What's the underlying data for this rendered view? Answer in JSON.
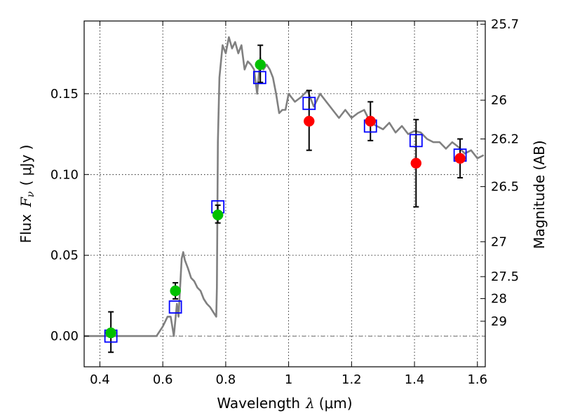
{
  "chart_data": {
    "type": "scatter",
    "title": "",
    "xlabel_prefix": "Wavelength",
    "xlabel_symbol": "λ",
    "xlabel_unit": "(μm)",
    "ylabel_prefix": "Flux",
    "ylabel_symbol": "F",
    "ylabel_subscript": "ν",
    "ylabel_unit": "( μJy )",
    "y2label": "Magnitude (AB)",
    "xlim": [
      0.35,
      1.625
    ],
    "ylim": [
      -0.019,
      0.195
    ],
    "grid": true,
    "grid_style": "dotted",
    "zero_line": true,
    "x_ticks": [
      0.4,
      0.6,
      0.8,
      1.0,
      1.2,
      1.4,
      1.6
    ],
    "x_tick_labels": [
      "0.4",
      "0.6",
      "0.8",
      "1",
      "1.2",
      "1.4",
      "1.6"
    ],
    "y_ticks": [
      0.0,
      0.05,
      0.1,
      0.15
    ],
    "y_tick_labels": [
      "0.00",
      "0.05",
      "0.10",
      "0.15"
    ],
    "y2_ticks": [
      {
        "label": "25.7",
        "flux": 0.193
      },
      {
        "label": "26",
        "flux": 0.146
      },
      {
        "label": "26.2",
        "flux": 0.122
      },
      {
        "label": "26.5",
        "flux": 0.0925
      },
      {
        "label": "27",
        "flux": 0.0584
      },
      {
        "label": "27.5",
        "flux": 0.0368
      },
      {
        "label": "28",
        "flux": 0.0232
      },
      {
        "label": "29",
        "flux": 0.0092
      }
    ],
    "colors": {
      "model": "#808080",
      "model_photometry": "#0000ff",
      "detection_optical": "#00c000",
      "detection_nir": "#ff0000",
      "errorbar": "#000000"
    },
    "model_sed": {
      "x": [
        0.35,
        0.58,
        0.6,
        0.615,
        0.625,
        0.635,
        0.645,
        0.65,
        0.655,
        0.66,
        0.665,
        0.67,
        0.68,
        0.69,
        0.7,
        0.71,
        0.72,
        0.73,
        0.74,
        0.75,
        0.76,
        0.77,
        0.772,
        0.775,
        0.78,
        0.79,
        0.8,
        0.81,
        0.82,
        0.83,
        0.84,
        0.85,
        0.86,
        0.87,
        0.88,
        0.89,
        0.9,
        0.91,
        0.92,
        0.93,
        0.94,
        0.95,
        0.96,
        0.97,
        0.98,
        0.99,
        1.0,
        1.02,
        1.04,
        1.06,
        1.08,
        1.1,
        1.12,
        1.14,
        1.16,
        1.18,
        1.2,
        1.22,
        1.24,
        1.26,
        1.28,
        1.3,
        1.32,
        1.34,
        1.36,
        1.38,
        1.4,
        1.42,
        1.44,
        1.46,
        1.48,
        1.5,
        1.52,
        1.54,
        1.56,
        1.58,
        1.6,
        1.62
      ],
      "y": [
        0.0,
        0.0,
        0.006,
        0.012,
        0.012,
        0.0,
        0.02,
        0.012,
        0.03,
        0.048,
        0.052,
        0.047,
        0.042,
        0.036,
        0.034,
        0.03,
        0.028,
        0.023,
        0.02,
        0.018,
        0.015,
        0.012,
        0.03,
        0.12,
        0.16,
        0.18,
        0.175,
        0.185,
        0.178,
        0.182,
        0.175,
        0.18,
        0.165,
        0.17,
        0.168,
        0.165,
        0.15,
        0.172,
        0.165,
        0.168,
        0.165,
        0.16,
        0.15,
        0.138,
        0.14,
        0.14,
        0.15,
        0.145,
        0.148,
        0.152,
        0.142,
        0.15,
        0.145,
        0.14,
        0.135,
        0.14,
        0.135,
        0.138,
        0.14,
        0.132,
        0.13,
        0.128,
        0.132,
        0.126,
        0.13,
        0.125,
        0.127,
        0.126,
        0.122,
        0.12,
        0.12,
        0.116,
        0.12,
        0.117,
        0.113,
        0.115,
        0.11,
        0.112
      ]
    },
    "model_photometry": {
      "x": [
        0.435,
        0.64,
        0.775,
        0.908,
        1.065,
        1.26,
        1.405,
        1.545
      ],
      "y": [
        0.0,
        0.018,
        0.08,
        0.16,
        0.144,
        0.13,
        0.121,
        0.112
      ]
    },
    "observed": [
      {
        "x": 0.435,
        "y": 0.002,
        "err_low": 0.012,
        "err_high": 0.013,
        "group": "optical"
      },
      {
        "x": 0.64,
        "y": 0.028,
        "err_low": 0.005,
        "err_high": 0.005,
        "group": "optical"
      },
      {
        "x": 0.775,
        "y": 0.075,
        "err_low": 0.005,
        "err_high": 0.006,
        "group": "optical"
      },
      {
        "x": 0.91,
        "y": 0.168,
        "err_low": 0.011,
        "err_high": 0.012,
        "group": "optical"
      },
      {
        "x": 1.065,
        "y": 0.133,
        "err_low": 0.018,
        "err_high": 0.019,
        "group": "nir"
      },
      {
        "x": 1.26,
        "y": 0.133,
        "err_low": 0.012,
        "err_high": 0.012,
        "group": "nir"
      },
      {
        "x": 1.405,
        "y": 0.107,
        "err_low": 0.027,
        "err_high": 0.027,
        "group": "nir"
      },
      {
        "x": 1.545,
        "y": 0.11,
        "err_low": 0.012,
        "err_high": 0.012,
        "group": "nir"
      }
    ]
  }
}
